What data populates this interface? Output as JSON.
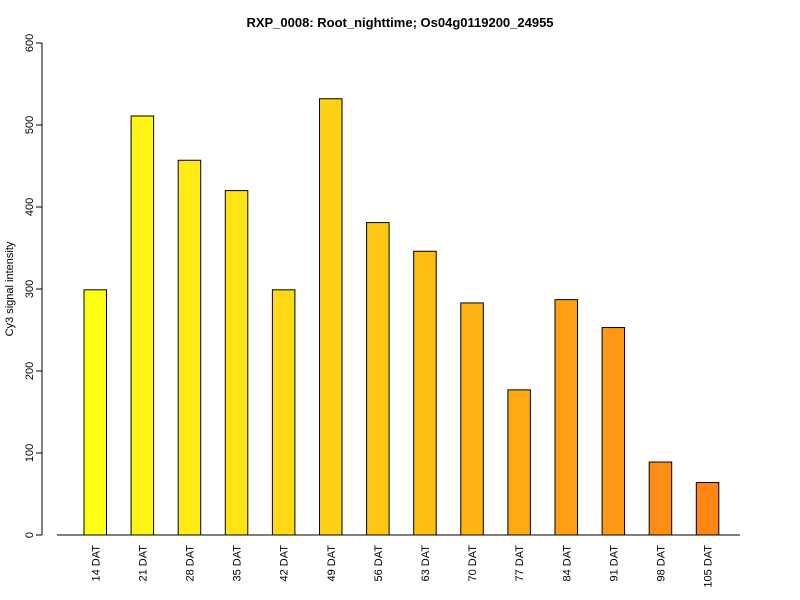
{
  "chart_data": {
    "type": "bar",
    "title": "RXP_0008: Root_nighttime; Os04g0119200_24955",
    "xlabel": "",
    "ylabel": "Cy3 signal intensity",
    "ylim": [
      0,
      600
    ],
    "yticks": [
      0,
      100,
      200,
      300,
      400,
      500,
      600
    ],
    "grid": false,
    "categories": [
      "14 DAT",
      "21 DAT",
      "28 DAT",
      "35 DAT",
      "42 DAT",
      "49 DAT",
      "56 DAT",
      "63 DAT",
      "70 DAT",
      "77 DAT",
      "84 DAT",
      "91 DAT",
      "98 DAT",
      "105 DAT"
    ],
    "values": [
      299,
      511,
      457,
      420,
      299,
      532,
      381,
      346,
      283,
      177,
      287,
      253,
      89,
      64
    ],
    "colors": [
      "#FFFF14",
      "#FFF514",
      "#FFEC14",
      "#FFE314",
      "#FFD914",
      "#FFD114",
      "#FFC714",
      "#FFBD14",
      "#FFB414",
      "#FFAA14",
      "#FFA014",
      "#FF9814",
      "#FF8D14",
      "#FF8514"
    ]
  }
}
